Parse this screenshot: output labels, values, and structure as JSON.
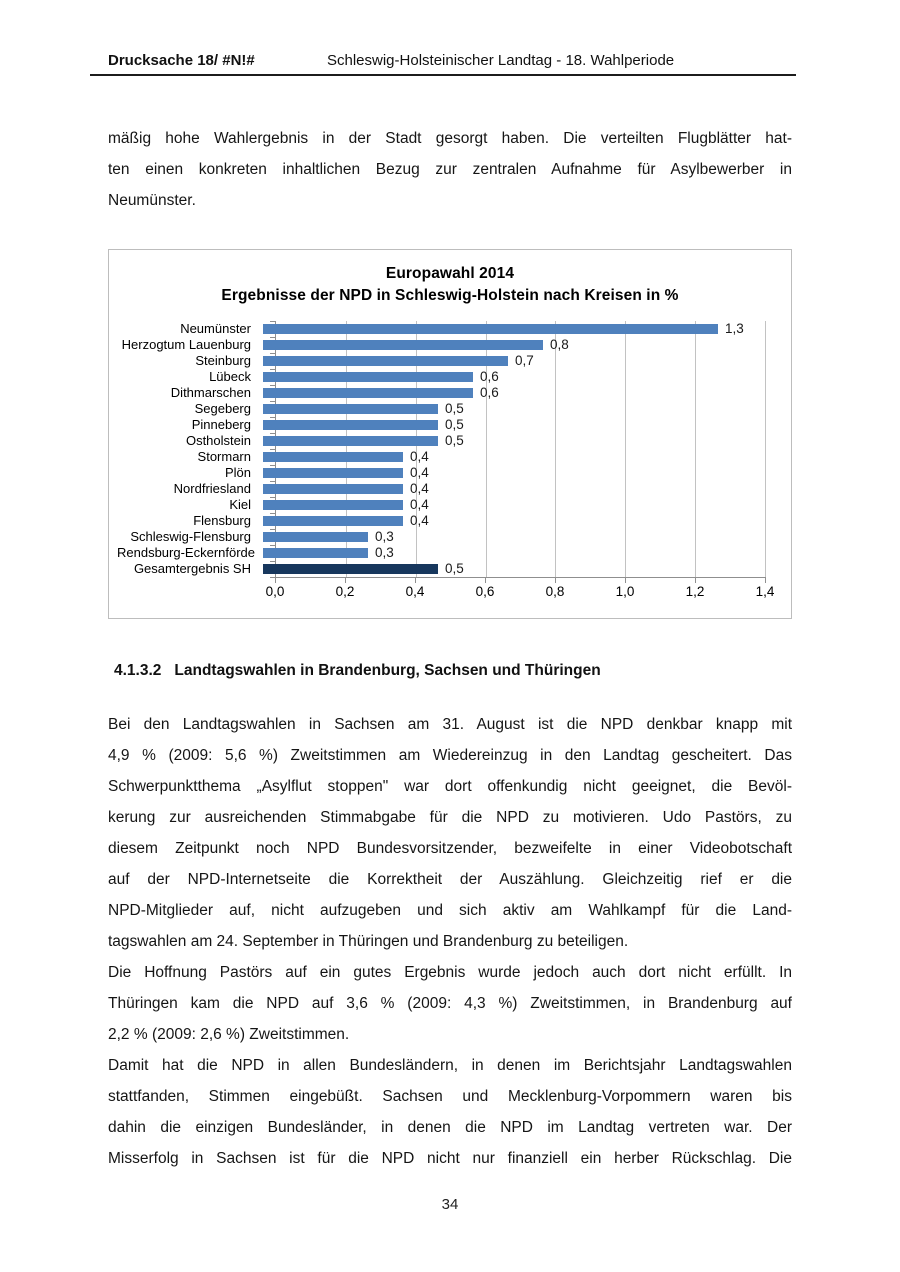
{
  "header": {
    "doc_number": "Drucksache 18/ #N!#",
    "title": "Schleswig-Holsteinischer Landtag - 18. Wahlperiode"
  },
  "intro": {
    "justify_last": false,
    "lines": [
      "mäßig hohe Wahlergebnis in der Stadt gesorgt haben. Die verteilten Flugblätter hat-",
      "ten einen konkreten inhaltlichen Bezug zur zentralen Aufnahme für Asylbewerber in",
      "Neumünster."
    ]
  },
  "chart_data": {
    "type": "bar",
    "orientation": "horizontal",
    "title": "Europawahl 2014",
    "subtitle": "Ergebnisse der NPD in Schleswig-Holstein nach Kreisen in %",
    "categories": [
      "Neumünster",
      "Herzogtum Lauenburg",
      "Steinburg",
      "Lübeck",
      "Dithmarschen",
      "Segeberg",
      "Pinneberg",
      "Ostholstein",
      "Stormarn",
      "Plön",
      "Nordfriesland",
      "Kiel",
      "Flensburg",
      "Schleswig-Flensburg",
      "Rendsburg-Eckernförde",
      "Gesamtergebnis SH"
    ],
    "values": [
      1.3,
      0.8,
      0.7,
      0.6,
      0.6,
      0.5,
      0.5,
      0.5,
      0.4,
      0.4,
      0.4,
      0.4,
      0.4,
      0.3,
      0.3,
      0.5
    ],
    "value_labels": [
      "1,3",
      "0,8",
      "0,7",
      "0,6",
      "0,6",
      "0,5",
      "0,5",
      "0,5",
      "0,4",
      "0,4",
      "0,4",
      "0,4",
      "0,4",
      "0,3",
      "0,3",
      "0,5"
    ],
    "x_tick_labels": [
      "0,0",
      "0,2",
      "0,4",
      "0,6",
      "0,8",
      "1,0",
      "1,2",
      "1,4"
    ],
    "xlim": [
      0,
      1.4
    ],
    "bar_color": "#4f81bd",
    "total_bar_color": "#17375d",
    "gridlines": true,
    "legend": "none"
  },
  "section": {
    "number": "4.1.3.2",
    "title": "Landtagswahlen in Brandenburg, Sachsen und Thüringen"
  },
  "paragraphs": [
    {
      "justify_last": false,
      "lines": [
        "Bei den Landtagswahlen in Sachsen am 31. August ist die NPD denkbar knapp mit",
        "4,9 % (2009: 5,6 %) Zweitstimmen am Wiedereinzug in den Landtag gescheitert. Das",
        "Schwerpunktthema „Asylflut stoppen\" war dort offenkundig nicht geeignet, die Bevöl-",
        "kerung zur ausreichenden Stimmabgabe für die NPD zu motivieren. Udo Pastörs, zu",
        "diesem Zeitpunkt noch NPD Bundesvorsitzender, bezweifelte in einer Videobotschaft",
        "auf der NPD-Internetseite die Korrektheit der Auszählung. Gleichzeitig rief er die",
        "NPD-Mitglieder auf, nicht aufzugeben und sich aktiv am Wahlkampf für die Land-",
        "tagswahlen am 24. September in Thüringen und Brandenburg zu beteiligen."
      ]
    },
    {
      "justify_last": false,
      "lines": [
        "Die Hoffnung Pastörs auf ein gutes Ergebnis wurde jedoch auch dort nicht erfüllt. In",
        "Thüringen kam die NPD auf 3,6 % (2009: 4,3 %) Zweitstimmen, in Brandenburg auf",
        "2,2 % (2009: 2,6 %) Zweitstimmen."
      ]
    },
    {
      "justify_last": true,
      "lines": [
        "Damit hat die NPD in allen Bundesländern, in denen im Berichtsjahr Landtagswahlen",
        "stattfanden, Stimmen eingebüßt. Sachsen und Mecklenburg-Vorpommern waren bis",
        "dahin die einzigen Bundesländer, in denen die NPD im Landtag vertreten war. Der",
        "Misserfolg in Sachsen ist für die NPD nicht nur finanziell ein herber Rückschlag. Die"
      ]
    }
  ],
  "footer": {
    "page_number": "34"
  }
}
